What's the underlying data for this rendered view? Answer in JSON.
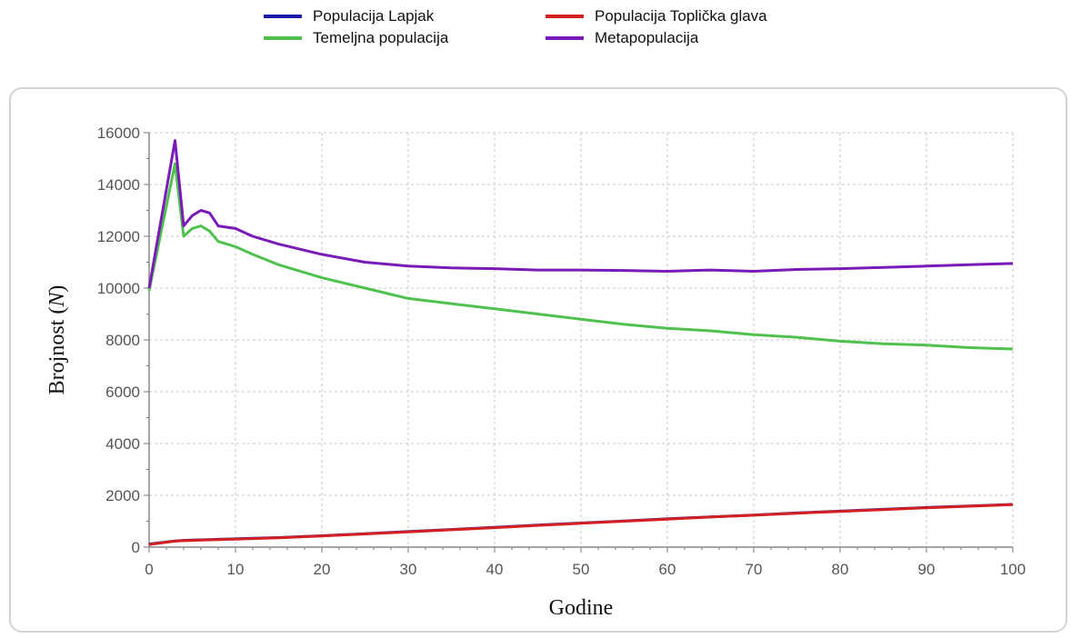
{
  "legend": {
    "items": [
      {
        "label": "Populacija Lapjak",
        "color": "#1a1aa8"
      },
      {
        "label": "Populacija Toplička glava",
        "color": "#d42020"
      },
      {
        "label": "Temeljna populacija",
        "color": "#4fc14f"
      },
      {
        "label": "Metapopulacija",
        "color": "#7a1ab8"
      }
    ]
  },
  "chart_data": {
    "type": "line",
    "title": "",
    "xlabel": "Godine",
    "ylabel": "Brojnost (N)",
    "xlim": [
      0,
      100
    ],
    "ylim": [
      0,
      16000
    ],
    "x_ticks": [
      "0",
      "10",
      "20",
      "30",
      "40",
      "50",
      "60",
      "70",
      "80",
      "90",
      "100"
    ],
    "y_ticks": [
      "0",
      "2000",
      "4000",
      "6000",
      "8000",
      "10000",
      "12000",
      "14000",
      "16000"
    ],
    "grid": true,
    "legend_position": "top",
    "x": [
      0,
      3,
      4,
      5,
      6,
      7,
      8,
      10,
      12,
      15,
      20,
      25,
      30,
      35,
      40,
      45,
      50,
      55,
      60,
      65,
      70,
      75,
      80,
      85,
      90,
      95,
      100
    ],
    "series": [
      {
        "name": "Populacija Lapjak",
        "color": "#1a1aa8",
        "values": [
          120,
          240,
          260,
          270,
          280,
          290,
          300,
          320,
          340,
          370,
          440,
          520,
          600,
          680,
          760,
          850,
          930,
          1010,
          1090,
          1170,
          1240,
          1320,
          1390,
          1460,
          1530,
          1590,
          1650
        ]
      },
      {
        "name": "Populacija Toplička glava",
        "color": "#d42020",
        "values": [
          100,
          230,
          250,
          260,
          270,
          280,
          290,
          310,
          330,
          360,
          430,
          510,
          590,
          670,
          750,
          840,
          920,
          1000,
          1080,
          1160,
          1230,
          1310,
          1380,
          1450,
          1520,
          1580,
          1640
        ]
      },
      {
        "name": "Temeljna populacija",
        "color": "#4fc14f",
        "values": [
          9900,
          14800,
          12000,
          12300,
          12400,
          12200,
          11800,
          11600,
          11300,
          10900,
          10400,
          10000,
          9600,
          9400,
          9200,
          9000,
          8800,
          8600,
          8450,
          8350,
          8200,
          8100,
          7950,
          7850,
          7800,
          7700,
          7650
        ]
      },
      {
        "name": "Metapopulacija",
        "color": "#7a1ab8",
        "values": [
          10000,
          15700,
          12400,
          12800,
          13000,
          12900,
          12400,
          12300,
          12000,
          11700,
          11300,
          11000,
          10850,
          10780,
          10750,
          10700,
          10700,
          10680,
          10650,
          10700,
          10650,
          10720,
          10750,
          10800,
          10850,
          10900,
          10950
        ]
      }
    ]
  }
}
